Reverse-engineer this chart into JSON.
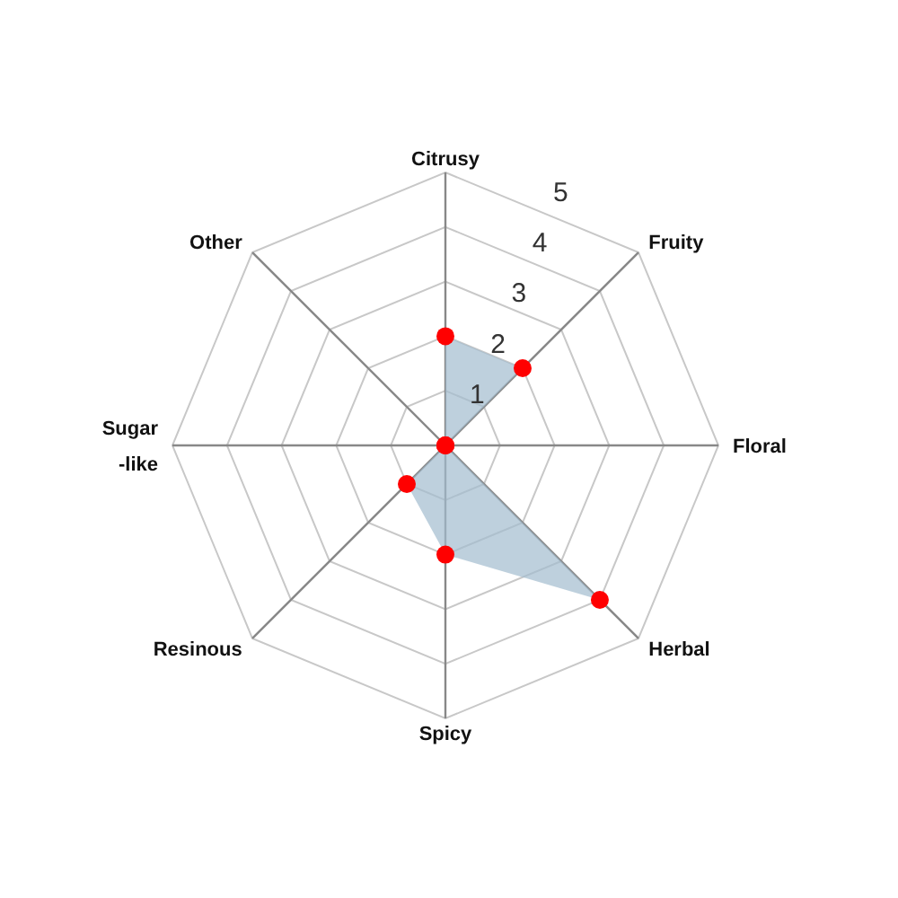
{
  "chart_data": {
    "type": "radar",
    "categories": [
      "Citrusy",
      "Fruity",
      "Floral",
      "Herbal",
      "Spicy",
      "Resinous",
      "Sugar\n-like",
      "Other"
    ],
    "series": [
      {
        "color": "#a3bccf",
        "colors": [
          "#ff0000",
          "#ff0000",
          "#ff0000",
          "#ff0000",
          "#ff0000",
          "#ff0000",
          "#ff0000",
          "#ff0000"
        ],
        "values": [
          2,
          2,
          0,
          4,
          2,
          1,
          0,
          0
        ]
      }
    ],
    "ylim": [
      0,
      5
    ],
    "yticks": [
      1,
      2,
      3,
      4,
      5
    ],
    "grid": true,
    "marker": "circle"
  }
}
